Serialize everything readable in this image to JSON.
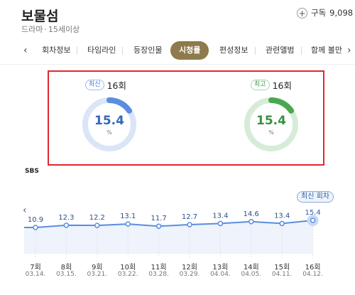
{
  "header": {
    "title": "보물섬",
    "genre": "드라마",
    "rating": "15세이상",
    "subscribe_label": "구독",
    "subscribe_count": "9,098"
  },
  "tabs": [
    {
      "label": "회차정보"
    },
    {
      "label": "타임라인"
    },
    {
      "label": "등장인물"
    },
    {
      "label": "시청률",
      "active": true
    },
    {
      "label": "편성정보"
    },
    {
      "label": "관련앨범"
    },
    {
      "label": "함께 볼만"
    }
  ],
  "ratings": {
    "latest": {
      "tag": "최신",
      "episode": "16회",
      "value": "15.4",
      "unit": "%",
      "color": "#5b8de0",
      "fill_fraction": 0.154
    },
    "highest": {
      "tag": "최고",
      "episode": "16회",
      "value": "15.4",
      "unit": "%",
      "color": "#49a84f",
      "fill_fraction": 0.154
    }
  },
  "chart_data": {
    "type": "line",
    "broadcaster": "SBS",
    "categories": [
      "7회",
      "8회",
      "9회",
      "10회",
      "11회",
      "12회",
      "13회",
      "14회",
      "15회",
      "16회"
    ],
    "dates": [
      "03.14.",
      "03.15.",
      "03.21.",
      "03.22.",
      "03.28.",
      "03.29.",
      "04.04.",
      "04.05.",
      "04.11.",
      "04.12."
    ],
    "values": [
      10.9,
      12.3,
      12.2,
      13.1,
      11.7,
      12.7,
      13.4,
      14.6,
      13.4,
      15.4
    ],
    "value_labels": [
      "10.9",
      "12.3",
      "12.2",
      "13.1",
      "11.7",
      "12.7",
      "13.4",
      "14.6",
      "13.4",
      "15.4"
    ],
    "latest_badge": "최신 회차",
    "line_color": "#5b8de0",
    "area_color": "#eef3fc"
  }
}
